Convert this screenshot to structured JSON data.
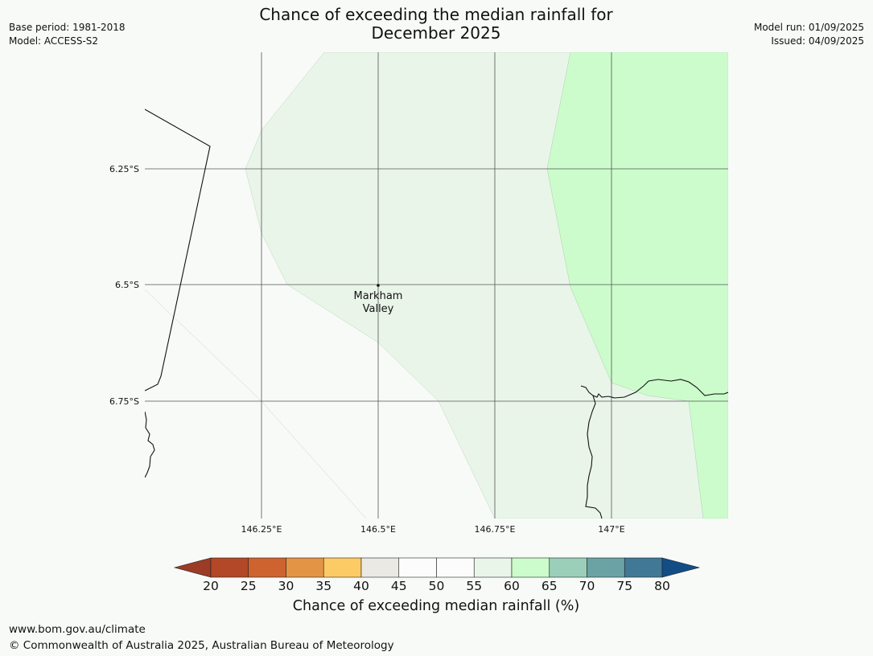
{
  "title_line1": "Chance of exceeding the median rainfall for",
  "title_line2": "December 2025",
  "base_period": "Base period: 1981-2018",
  "model": "Model: ACCESS-S2",
  "model_run": "Model run: 01/09/2025",
  "issued": "Issued: 04/09/2025",
  "lat_labels": [
    "6.25°S",
    "6.5°S",
    "6.75°S"
  ],
  "lon_labels": [
    "146.25°E",
    "146.5°E",
    "146.75°E",
    "147°E"
  ],
  "place_label_line1": "Markham",
  "place_label_line2": "Valley",
  "colorbar": {
    "ticks": [
      "20",
      "25",
      "30",
      "35",
      "40",
      "45",
      "50",
      "55",
      "60",
      "65",
      "70",
      "75",
      "80"
    ],
    "title": "Chance of exceeding median rainfall (%)",
    "colors": [
      "#9c3b26",
      "#b24827",
      "#ce6330",
      "#e39445",
      "#fdcb66",
      "#ebe9e4",
      "#fcfcfc",
      "#fcfcfc",
      "#eaf5ea",
      "#ccfccc",
      "#9bcfb9",
      "#6ba3a5",
      "#417895",
      "#134d86"
    ]
  },
  "footer_url": "www.bom.gov.au/climate",
  "footer_copyright": "© Commonwealth of Australia 2025, Australian Bureau of Meteorology"
}
